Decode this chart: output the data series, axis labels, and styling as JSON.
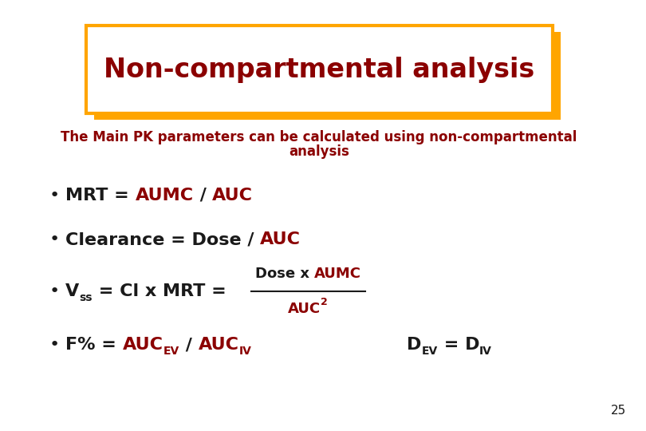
{
  "title": "Non-compartmental analysis",
  "title_color": "#8B0000",
  "title_box_edge_color": "#FFA500",
  "title_box_face_color": "#FFFFFF",
  "subtitle_line1": "The Main PK parameters can be calculated using non-compartmental",
  "subtitle_line2": "analysis",
  "subtitle_color": "#8B0000",
  "background_color": "#FFFFFF",
  "dark_color": "#1A1A1A",
  "red_color": "#8B0000",
  "slide_number": "25",
  "fig_width": 8.1,
  "fig_height": 5.4,
  "dpi": 100
}
